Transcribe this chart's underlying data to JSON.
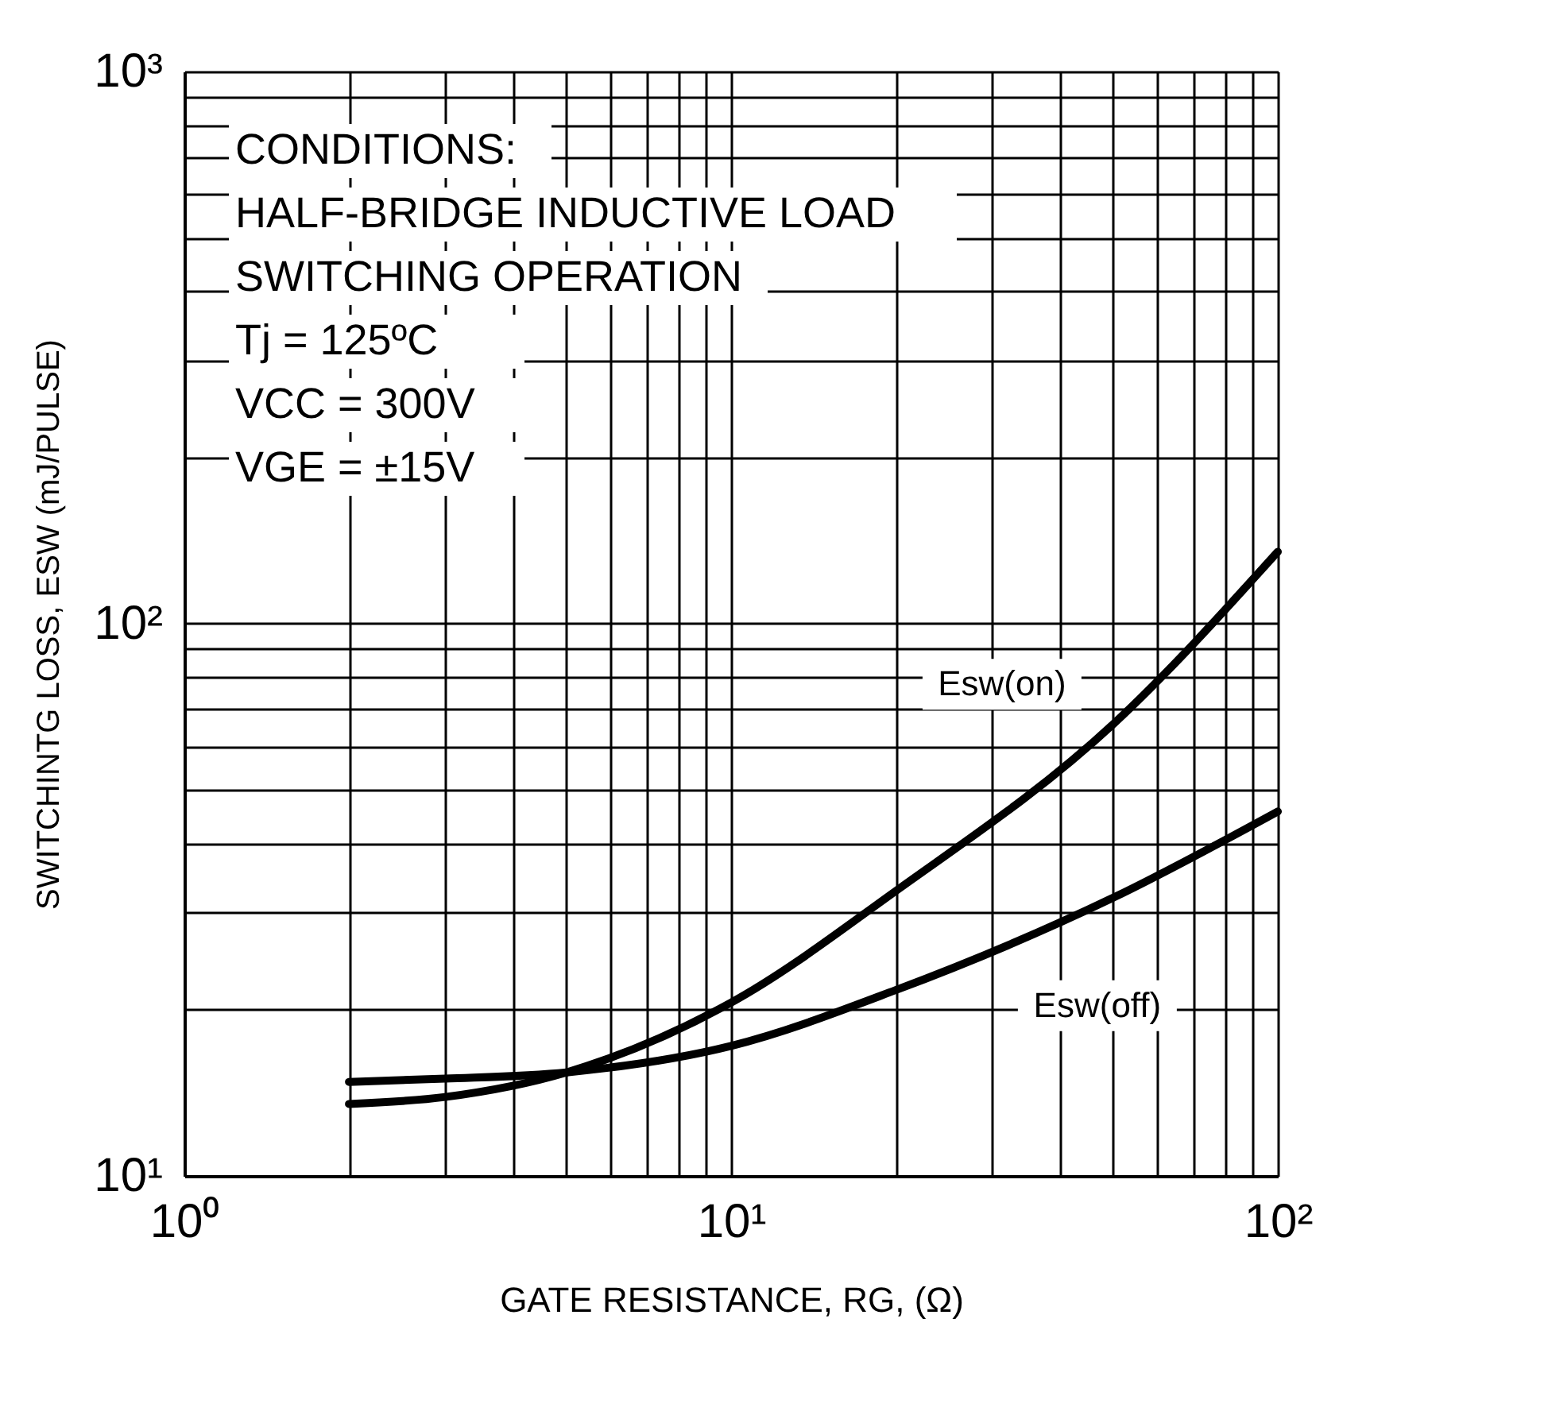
{
  "chart_data": {
    "type": "line",
    "xlabel": "GATE RESISTANCE, RG, (Ω)",
    "ylabel": "SWITCHINTG LOSS, ESW (mJ/PULSE)",
    "annotations": [
      "CONDITIONS:",
      "HALF-BRIDGE INDUCTIVE LOAD",
      "SWITCHING OPERATION",
      "Tj = 125ºC",
      "VCC = 300V",
      "VGE = ±15V"
    ],
    "log": "xy",
    "grid": true,
    "legend": false,
    "line_style": "solid",
    "marker": "none",
    "xlim": [
      1,
      100
    ],
    "ylim": [
      10,
      1000
    ],
    "xticks": [
      {
        "value": 1,
        "label": "10⁰"
      },
      {
        "value": 2,
        "label": null
      },
      {
        "value": 3,
        "label": null
      },
      {
        "value": 4,
        "label": null
      },
      {
        "value": 5,
        "label": null
      },
      {
        "value": 6,
        "label": null
      },
      {
        "value": 7,
        "label": null
      },
      {
        "value": 8,
        "label": null
      },
      {
        "value": 9,
        "label": null
      },
      {
        "value": 10,
        "label": "10¹"
      },
      {
        "value": 20,
        "label": null
      },
      {
        "value": 30,
        "label": null
      },
      {
        "value": 40,
        "label": null
      },
      {
        "value": 50,
        "label": null
      },
      {
        "value": 60,
        "label": null
      },
      {
        "value": 70,
        "label": null
      },
      {
        "value": 80,
        "label": null
      },
      {
        "value": 90,
        "label": null
      },
      {
        "value": 100,
        "label": "10²"
      }
    ],
    "yticks": [
      {
        "value": 10,
        "label": "10¹"
      },
      {
        "value": 20,
        "label": null
      },
      {
        "value": 30,
        "label": null
      },
      {
        "value": 40,
        "label": null
      },
      {
        "value": 50,
        "label": null
      },
      {
        "value": 60,
        "label": null
      },
      {
        "value": 70,
        "label": null
      },
      {
        "value": 80,
        "label": null
      },
      {
        "value": 90,
        "label": null
      },
      {
        "value": 100,
        "label": "10²"
      },
      {
        "value": 200,
        "label": null
      },
      {
        "value": 300,
        "label": null
      },
      {
        "value": 400,
        "label": null
      },
      {
        "value": 500,
        "label": null
      },
      {
        "value": 600,
        "label": null
      },
      {
        "value": 700,
        "label": null
      },
      {
        "value": 800,
        "label": null
      },
      {
        "value": 900,
        "label": null
      },
      {
        "value": 1000,
        "label": "10³"
      }
    ],
    "x": [
      2,
      3,
      5,
      10,
      20,
      50,
      100
    ],
    "series": [
      {
        "name": "Esw(on)",
        "color": "#000000",
        "values": [
          13.5,
          13.9,
          15.4,
          20.6,
          32.8,
          65.8,
          135
        ]
      },
      {
        "name": "Esw(off)",
        "color": "#000000",
        "values": [
          14.8,
          15.0,
          15.4,
          17.2,
          21.7,
          31.9,
          45.7
        ]
      }
    ]
  }
}
